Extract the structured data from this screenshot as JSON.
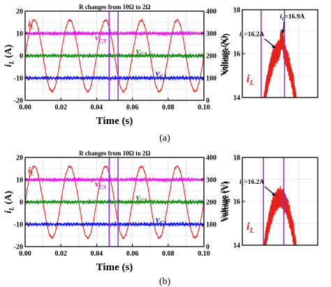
{
  "captions": [
    "(a)",
    "(b)"
  ],
  "colors": {
    "iL": "#e8201a",
    "vC1": "#1a1ae6",
    "vC2": "#1a8a1a",
    "vC3": "#e61ae6",
    "marker": "#8a2be2"
  },
  "chart_data": [
    {
      "type": "line",
      "panel": "a-main",
      "xlabel": "Time (s)",
      "ylabel_left": "i_L (A)",
      "ylabel_right": "Voltage (V)",
      "xlim": [
        0,
        0.1
      ],
      "ylim_left": [
        -20,
        20
      ],
      "ylim_right": [
        0,
        400
      ],
      "xticks": [
        "0.00",
        "0.02",
        "0.04",
        "0.06",
        "0.08",
        "0.10"
      ],
      "yticks_left": [
        "-20",
        "-10",
        "0",
        "10",
        "20"
      ],
      "yticks_right": [
        "0",
        "100",
        "200",
        "300",
        "400"
      ],
      "annotation": "R changes from 10Ω to 2Ω",
      "markers_x": [
        0.047,
        0.052
      ],
      "series": [
        {
          "name": "i_L",
          "label_main": "i",
          "label_sub": "L",
          "axis": "left",
          "kind": "sine",
          "amplitude": 16,
          "frequency_hz": 50,
          "phase_deg": 0,
          "color": "#e8201a"
        },
        {
          "name": "v_C3",
          "label_main": "v",
          "label_sub": "C3",
          "axis": "right",
          "kind": "flat",
          "value": 300,
          "color": "#e61ae6"
        },
        {
          "name": "v_C2",
          "label_main": "v",
          "label_sub": "C2",
          "axis": "right",
          "kind": "flat",
          "value": 200,
          "color": "#1a8a1a"
        },
        {
          "name": "v_C1",
          "label_main": "v",
          "label_sub": "C1",
          "axis": "right",
          "kind": "flat",
          "value": 100,
          "color": "#1a1ae6"
        }
      ]
    },
    {
      "type": "line",
      "panel": "a-zoom",
      "ylabel": "Voltage (V)",
      "ylim": [
        14,
        18
      ],
      "yticks": [
        "14",
        "16",
        "18"
      ],
      "series_label_main": "i",
      "series_label_sub": "L",
      "markers_rel": [
        0.25,
        0.56
      ],
      "annotations": [
        {
          "main": "i",
          "sub": "L",
          "text": "=16.2A"
        },
        {
          "main": "i",
          "sub": "L",
          "text": "=16.9A"
        }
      ]
    },
    {
      "type": "line",
      "panel": "b-main",
      "xlabel": "Time (s)",
      "ylabel_left": "i_L (A)",
      "ylabel_right": "Voltage (V)",
      "xlim": [
        0,
        0.1
      ],
      "ylim_left": [
        -20,
        20
      ],
      "ylim_right": [
        0,
        400
      ],
      "xticks": [
        "0.00",
        "0.02",
        "0.04",
        "0.06",
        "0.08",
        "0.10"
      ],
      "yticks_left": [
        "-20",
        "-10",
        "0",
        "10",
        "20"
      ],
      "yticks_right": [
        "0",
        "100",
        "200",
        "300",
        "400"
      ],
      "annotation": "R changes from 10Ω to 2Ω",
      "markers_x": [
        0.047,
        0.052
      ],
      "series": [
        {
          "name": "i_L",
          "label_main": "i",
          "label_sub": "L",
          "axis": "left",
          "kind": "sine",
          "amplitude": 16,
          "frequency_hz": 50,
          "phase_deg": 0,
          "color": "#e8201a"
        },
        {
          "name": "v_C3",
          "label_main": "v",
          "label_sub": "C3",
          "axis": "right",
          "kind": "flat",
          "value": 300,
          "color": "#e61ae6"
        },
        {
          "name": "v_C2",
          "label_main": "v",
          "label_sub": "C2",
          "axis": "right",
          "kind": "flat",
          "value": 200,
          "color": "#1a8a1a"
        },
        {
          "name": "v_C1",
          "label_main": "v",
          "label_sub": "C1",
          "axis": "right",
          "kind": "flat",
          "value": 100,
          "color": "#1a1ae6"
        }
      ]
    },
    {
      "type": "line",
      "panel": "b-zoom",
      "ylabel": "Voltage (V)",
      "ylim": [
        14,
        18
      ],
      "yticks": [
        "14",
        "16",
        "18"
      ],
      "series_label_main": "i",
      "series_label_sub": "L",
      "markers_rel": [
        0.28,
        0.55
      ],
      "annotations": [
        {
          "main": "i",
          "sub": "L",
          "text": "=16.2A"
        }
      ]
    }
  ]
}
